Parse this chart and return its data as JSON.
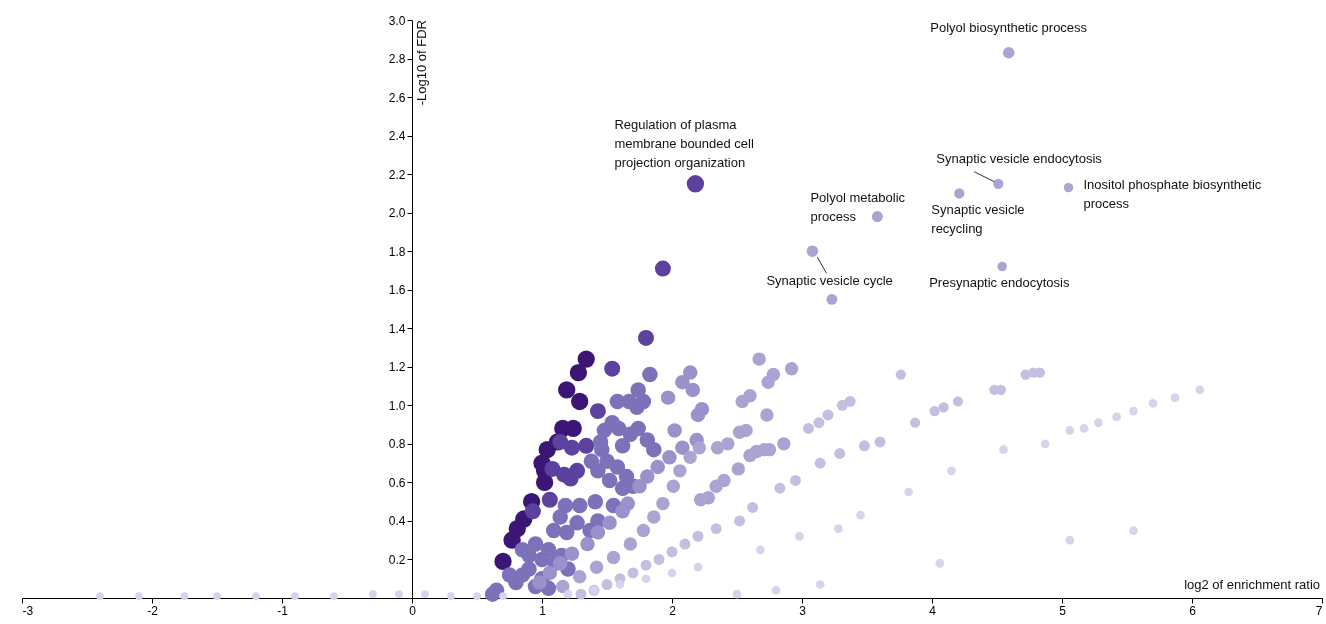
{
  "chart_data": {
    "type": "bubble",
    "xlabel": "log2 of enrichment ratio",
    "ylabel": "-Log10 of FDR",
    "xlim": [
      -3,
      7
    ],
    "ylim": [
      0,
      3.0
    ],
    "xticks": [
      -3,
      -2,
      -1,
      0,
      1,
      2,
      3,
      4,
      5,
      6,
      7
    ],
    "yticks": [
      0.2,
      0.4,
      0.6,
      0.8,
      {
        "value": 1,
        "label": "1.0"
      },
      1.2,
      1.4,
      1.6,
      1.8,
      {
        "value": 2,
        "label": "2.0"
      },
      2.2,
      2.4,
      2.6,
      2.8,
      {
        "value": 3,
        "label": "3.0"
      }
    ],
    "marker": "circle",
    "series": [
      {
        "color": "#3c1675",
        "x": [
          1.34,
          1.28,
          1.19,
          1.29,
          1.16,
          1.24,
          1.12,
          1.04,
          1.0,
          1.02,
          1.02,
          0.92,
          0.86,
          0.81,
          0.77,
          0.7
        ],
        "values": [
          1.24,
          1.17,
          1.08,
          1.02,
          0.88,
          0.88,
          0.81,
          0.77,
          0.7,
          0.66,
          0.6,
          0.5,
          0.41,
          0.36,
          0.3,
          0.19
        ],
        "sizes": [
          1,
          1,
          1,
          1,
          1,
          1,
          1,
          1,
          1,
          1,
          1,
          1,
          1,
          1,
          1,
          1
        ]
      },
      {
        "color": "#5c419e",
        "x": [
          2.18,
          1.93,
          1.8,
          1.54,
          1.43,
          1.14,
          1.08,
          0.93,
          1.06,
          1.17,
          1.22,
          1.27,
          1.23,
          1.34
        ],
        "values": [
          2.15,
          1.71,
          1.35,
          1.19,
          0.97,
          0.81,
          0.67,
          0.45,
          0.51,
          0.64,
          0.62,
          0.66,
          0.78,
          0.79
        ],
        "sizes": [
          1,
          0.85,
          0.85,
          0.85,
          0.85,
          0.85,
          0.85,
          0.85,
          0.85,
          0.85,
          0.85,
          0.85,
          0.85,
          0.85
        ]
      },
      {
        "color": "#7d71ba",
        "x": [
          1.83,
          1.74,
          1.58,
          1.67,
          1.78,
          1.73,
          1.74,
          1.54,
          1.48,
          1.59,
          1.68,
          1.45,
          1.62,
          1.81,
          1.86,
          1.46,
          1.38,
          1.5,
          1.43,
          1.58,
          1.52,
          1.65,
          1.62,
          1.7,
          1.41,
          1.29,
          1.18,
          1.55,
          1.14,
          1.27,
          1.43,
          1.09,
          1.19,
          1.37,
          0.85,
          0.9,
          0.95,
          1.0,
          1.05,
          1.1,
          1.15,
          1.2,
          0.75,
          0.8,
          0.85,
          0.9,
          0.95,
          1.0,
          1.05,
          0.65,
          0.62
        ],
        "values": [
          1.16,
          1.08,
          1.02,
          1.02,
          1.02,
          0.99,
          0.88,
          0.91,
          0.87,
          0.88,
          0.85,
          0.81,
          0.79,
          0.82,
          0.77,
          0.77,
          0.71,
          0.71,
          0.66,
          0.68,
          0.61,
          0.63,
          0.57,
          0.58,
          0.5,
          0.48,
          0.48,
          0.48,
          0.42,
          0.39,
          0.4,
          0.35,
          0.34,
          0.35,
          0.25,
          0.22,
          0.28,
          0.2,
          0.25,
          0.18,
          0.22,
          0.15,
          0.12,
          0.08,
          0.12,
          0.15,
          0.06,
          0.1,
          0.05,
          0.04,
          0.02
        ],
        "sizes": [
          0.8,
          0.8,
          0.8,
          0.8,
          0.8,
          0.8,
          0.8,
          0.8,
          0.8,
          0.8,
          0.8,
          0.8,
          0.8,
          0.8,
          0.8,
          0.8,
          0.8,
          0.8,
          0.8,
          0.8,
          0.8,
          0.8,
          0.8,
          0.8,
          0.8,
          0.8,
          0.8,
          0.8,
          0.8,
          0.8,
          0.8,
          0.8,
          0.8,
          0.8,
          0.8,
          0.8,
          0.8,
          0.8,
          0.8,
          0.8,
          0.8,
          0.8,
          0.8,
          0.8,
          0.8,
          0.8,
          0.8,
          0.8,
          0.8,
          0.8,
          0.8
        ]
      },
      {
        "color": "#9a92cb",
        "x": [
          1.97,
          2.14,
          2.08,
          2.16,
          2.23,
          2.2,
          2.02,
          2.19,
          2.08,
          1.98,
          1.89,
          1.81,
          1.75,
          1.66,
          1.62,
          1.52,
          1.43,
          1.35,
          1.23,
          1.14,
          1.06,
          0.98
        ],
        "values": [
          1.04,
          1.17,
          1.12,
          1.08,
          0.98,
          0.95,
          0.87,
          0.82,
          0.78,
          0.73,
          0.68,
          0.63,
          0.58,
          0.49,
          0.45,
          0.39,
          0.34,
          0.28,
          0.23,
          0.18,
          0.13,
          0.08
        ],
        "sizes": [
          0.7,
          0.7,
          0.7,
          0.7,
          0.7,
          0.7,
          0.7,
          0.7,
          0.7,
          0.7,
          0.7,
          0.7,
          0.7,
          0.7,
          0.7,
          0.7,
          0.7,
          0.7,
          0.7,
          0.7,
          0.7,
          0.7
        ]
      },
      {
        "color": "#aaa4d3",
        "x": [
          2.92,
          2.78,
          2.74,
          2.67,
          2.6,
          2.54,
          2.73,
          2.57,
          2.52,
          2.43,
          2.35,
          2.86,
          2.75,
          2.71,
          2.65,
          2.6,
          2.51,
          2.4,
          2.34,
          2.28,
          2.22,
          2.01,
          1.93,
          1.86,
          1.78,
          1.68,
          1.55,
          1.42,
          1.29,
          1.16,
          2.06,
          2.14,
          2.21,
          4.59,
          4.51,
          5.05,
          4.21,
          3.58,
          3.08,
          3.23,
          4.54
        ],
        "values": [
          1.19,
          1.16,
          1.12,
          1.24,
          1.05,
          1.02,
          0.95,
          0.87,
          0.86,
          0.8,
          0.78,
          0.8,
          0.77,
          0.77,
          0.76,
          0.74,
          0.67,
          0.61,
          0.58,
          0.52,
          0.51,
          0.58,
          0.49,
          0.42,
          0.35,
          0.28,
          0.21,
          0.16,
          0.11,
          0.06,
          0.66,
          0.73,
          0.78,
          2.83,
          2.15,
          2.13,
          2.1,
          1.98,
          1.8,
          1.55,
          1.72
        ],
        "sizes": [
          0.6,
          0.6,
          0.6,
          0.6,
          0.6,
          0.6,
          0.6,
          0.6,
          0.6,
          0.6,
          0.6,
          0.6,
          0.6,
          0.6,
          0.6,
          0.6,
          0.6,
          0.6,
          0.6,
          0.6,
          0.6,
          0.6,
          0.6,
          0.6,
          0.6,
          0.6,
          0.6,
          0.6,
          0.6,
          0.6,
          0.6,
          0.6,
          0.6,
          0.45,
          0.35,
          0.3,
          0.35,
          0.4,
          0.45,
          0.4,
          0.3
        ]
      },
      {
        "color": "#c3bfe1",
        "x": [
          3.37,
          3.31,
          3.2,
          3.13,
          3.05,
          3.6,
          3.48,
          3.29,
          3.14,
          2.95,
          2.83,
          2.62,
          2.52,
          2.34,
          2.2,
          2.1,
          2.0,
          1.9,
          1.8,
          1.7,
          1.6,
          1.5,
          1.4,
          1.3,
          3.76,
          3.87,
          4.02,
          4.09,
          4.2,
          4.48,
          4.53,
          4.72,
          4.78,
          4.83
        ],
        "values": [
          1.02,
          1.0,
          0.95,
          0.91,
          0.88,
          0.81,
          0.79,
          0.75,
          0.7,
          0.61,
          0.57,
          0.47,
          0.4,
          0.36,
          0.32,
          0.28,
          0.24,
          0.2,
          0.17,
          0.13,
          0.1,
          0.07,
          0.04,
          0.02,
          1.16,
          0.91,
          0.97,
          0.99,
          1.02,
          1.08,
          1.08,
          1.16,
          1.17,
          1.17
        ],
        "sizes": [
          0.4,
          0.4,
          0.4,
          0.4,
          0.4,
          0.4,
          0.4,
          0.4,
          0.4,
          0.4,
          0.4,
          0.4,
          0.4,
          0.4,
          0.4,
          0.4,
          0.4,
          0.4,
          0.4,
          0.4,
          0.4,
          0.4,
          0.4,
          0.4,
          0.35,
          0.35,
          0.35,
          0.35,
          0.35,
          0.35,
          0.35,
          0.35,
          0.35,
          0.35
        ]
      },
      {
        "color": "#d6d3eb",
        "x": [
          5.55,
          5.06,
          4.06,
          3.14,
          2.8,
          2.5,
          4.87,
          4.55,
          4.15,
          3.82,
          3.45,
          3.28,
          2.98,
          2.68,
          2.2,
          2.0,
          1.8,
          1.6,
          1.4,
          1.2,
          6.06,
          5.87,
          5.7,
          5.55,
          5.42,
          5.28,
          5.17,
          5.06,
          -2.4,
          -2.1,
          -1.75,
          -1.5,
          -1.2,
          -0.9,
          -0.6,
          -0.3,
          -0.1,
          0.1,
          0.3,
          0.5,
          0.7
        ],
        "values": [
          0.35,
          0.3,
          0.18,
          0.07,
          0.04,
          0.02,
          0.8,
          0.77,
          0.66,
          0.55,
          0.43,
          0.36,
          0.32,
          0.25,
          0.16,
          0.13,
          0.1,
          0.07,
          0.04,
          0.02,
          1.08,
          1.04,
          1.01,
          0.97,
          0.94,
          0.91,
          0.88,
          0.87,
          0.01,
          0.01,
          0.01,
          0.01,
          0.01,
          0.01,
          0.01,
          0.02,
          0.02,
          0.02,
          0.01,
          0.01,
          0.01
        ],
        "sizes": [
          0.25,
          0.25,
          0.25,
          0.25,
          0.25,
          0.25,
          0.25,
          0.25,
          0.25,
          0.25,
          0.25,
          0.25,
          0.25,
          0.25,
          0.25,
          0.25,
          0.25,
          0.25,
          0.25,
          0.25,
          0.25,
          0.25,
          0.25,
          0.25,
          0.25,
          0.25,
          0.25,
          0.25,
          0.2,
          0.2,
          0.2,
          0.2,
          0.2,
          0.2,
          0.2,
          0.2,
          0.2,
          0.2,
          0.2,
          0.2,
          0.2
        ]
      }
    ],
    "annotations": [
      {
        "text": "Polyol biosynthetic process",
        "x": 4.59,
        "y": 2.83
      },
      {
        "text": "Regulation of plasma\nmembrane bounded cell\nprojection organization",
        "x": 2.18,
        "y": 2.15
      },
      {
        "text": "Synaptic vesicle endocytosis",
        "x": 4.51,
        "y": 2.15
      },
      {
        "text": "Inositol phosphate biosynthetic\nprocess",
        "x": 5.05,
        "y": 2.13
      },
      {
        "text": "Synaptic vesicle\nrecycling",
        "x": 4.21,
        "y": 2.1
      },
      {
        "text": "Polyol metabolic\nprocess",
        "x": 3.58,
        "y": 1.98
      },
      {
        "text": "Synaptic vesicle cycle",
        "x": 3.08,
        "y": 1.8
      },
      {
        "text": "Presynaptic endocytosis",
        "x": 4.54,
        "y": 1.72
      }
    ]
  }
}
